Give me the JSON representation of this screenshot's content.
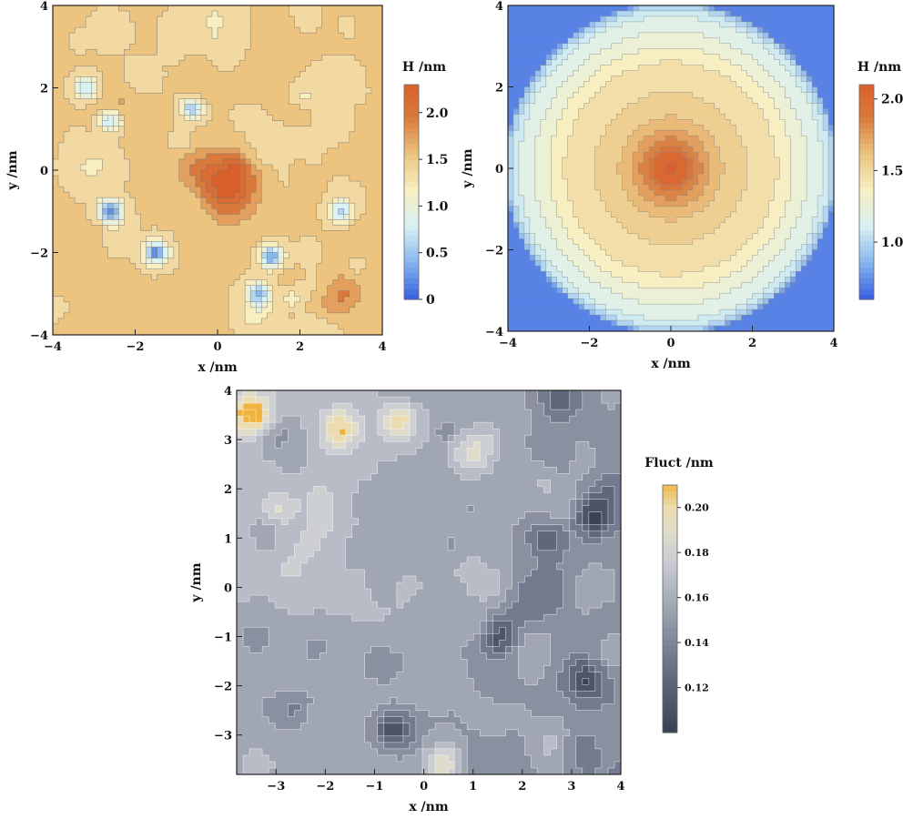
{
  "chart_data": [
    {
      "type": "contour",
      "title": "",
      "xlabel": "x /nm",
      "ylabel": "y /nm",
      "xlim": [
        -4,
        4
      ],
      "ylim": [
        -4,
        4
      ],
      "xticks": [
        "−4",
        "−2",
        "0",
        "2",
        "4"
      ],
      "yticks": [
        "−4",
        "−2",
        "0",
        "2",
        "4"
      ],
      "colorbar": {
        "title": "H /nm",
        "range": [
          0,
          2.3
        ],
        "ticks": [
          "0",
          "0.5",
          "1.0",
          "1.5",
          "2.0"
        ],
        "tick_values": [
          0,
          0.5,
          1.0,
          1.5,
          2.0
        ],
        "colors": [
          "#3b62e0",
          "#8ab8ee",
          "#d9f2f3",
          "#f7eec2",
          "#ecc480",
          "#d97a3c",
          "#d95f2b"
        ]
      },
      "features": [
        {
          "label": "central peak",
          "x": 0.2,
          "y": -0.4,
          "height": 2.3
        },
        {
          "label": "depression",
          "x": -2.6,
          "y": -1.0,
          "height": 0.3
        },
        {
          "label": "depression",
          "x": -1.5,
          "y": -2.0,
          "height": 0.3
        },
        {
          "label": "depression",
          "x": 1.3,
          "y": -2.1,
          "height": 0.4
        },
        {
          "label": "depression",
          "x": -0.6,
          "y": 1.5,
          "height": 0.6
        },
        {
          "label": "depression",
          "x": 1.0,
          "y": -3.0,
          "height": 0.4
        },
        {
          "label": "depression",
          "x": -2.6,
          "y": 1.2,
          "height": 0.6
        },
        {
          "label": "depression",
          "x": -3.2,
          "y": 2.0,
          "height": 0.7
        },
        {
          "label": "depression",
          "x": 3.0,
          "y": -1.0,
          "height": 0.6
        }
      ]
    },
    {
      "type": "contour",
      "title": "",
      "xlabel": "x /nm",
      "ylabel": "y /nm",
      "xlim": [
        -4,
        4
      ],
      "ylim": [
        -4,
        4
      ],
      "xticks": [
        "−4",
        "−2",
        "0",
        "2",
        "4"
      ],
      "yticks": [
        "−4",
        "−2",
        "0",
        "2",
        "4"
      ],
      "colorbar": {
        "title": "H /nm",
        "range": [
          0.6,
          2.1
        ],
        "ticks": [
          "1.0",
          "1.5",
          "2.0"
        ],
        "tick_values": [
          1.0,
          1.5,
          2.0
        ],
        "colors": [
          "#3b62e0",
          "#8ab8ee",
          "#d9f2f3",
          "#f7eec2",
          "#ecc480",
          "#d97a3c",
          "#d95f2b"
        ]
      },
      "radial_profile": {
        "r": [
          0,
          0.4,
          0.55,
          0.8,
          1.05,
          1.4,
          1.8,
          2.2,
          2.6,
          3.0,
          3.4,
          3.8,
          4.0,
          4.1
        ],
        "h": [
          2.1,
          2.0,
          1.85,
          1.75,
          1.65,
          1.55,
          1.5,
          1.45,
          1.4,
          1.3,
          1.2,
          1.1,
          0.95,
          0.65
        ]
      }
    },
    {
      "type": "contour",
      "title": "",
      "xlabel": "x /nm",
      "ylabel": "y /nm",
      "xlim": [
        -3.8,
        4
      ],
      "ylim": [
        -3.8,
        4
      ],
      "xticks": [
        "−3",
        "−2",
        "−1",
        "0",
        "1",
        "2",
        "3",
        "4"
      ],
      "yticks": [
        "−3",
        "−2",
        "−1",
        "0",
        "1",
        "2",
        "3",
        "4"
      ],
      "colorbar": {
        "title": "Fluct /nm",
        "range": [
          0.1,
          0.21
        ],
        "ticks": [
          "0.12",
          "0.14",
          "0.16",
          "0.18",
          "0.20"
        ],
        "tick_values": [
          0.12,
          0.14,
          0.16,
          0.18,
          0.2
        ],
        "colors": [
          "#3b4256",
          "#4d5467",
          "#5f677b",
          "#737b8e",
          "#8a90a0",
          "#a1a6b3",
          "#b8bcc6",
          "#cdcfd2",
          "#dfdcc9",
          "#ebddb0",
          "#f0b43e"
        ]
      },
      "features": [
        {
          "label": "high",
          "x": 0.4,
          "y": -3.6,
          "value": 0.19
        },
        {
          "label": "high",
          "x": -3.5,
          "y": 3.5,
          "value": 0.2
        },
        {
          "label": "high",
          "x": -0.5,
          "y": 3.4,
          "value": 0.19
        },
        {
          "label": "high",
          "x": 1.0,
          "y": 2.7,
          "value": 0.18
        },
        {
          "label": "high",
          "x": -3.0,
          "y": 1.6,
          "value": 0.18
        },
        {
          "label": "high",
          "x": -1.7,
          "y": 3.2,
          "value": 0.19
        },
        {
          "label": "low",
          "x": 1.5,
          "y": -1.0,
          "value": 0.11
        },
        {
          "label": "low",
          "x": -0.6,
          "y": -2.9,
          "value": 0.11
        },
        {
          "label": "low",
          "x": 3.4,
          "y": 1.4,
          "value": 0.11
        },
        {
          "label": "low",
          "x": 3.3,
          "y": -1.9,
          "value": 0.12
        },
        {
          "label": "low",
          "x": 2.5,
          "y": 1.0,
          "value": 0.12
        },
        {
          "label": "low",
          "x": -2.5,
          "y": -2.5,
          "value": 0.13
        },
        {
          "label": "low",
          "x": -3.0,
          "y": 3.0,
          "value": 0.13
        }
      ]
    }
  ]
}
